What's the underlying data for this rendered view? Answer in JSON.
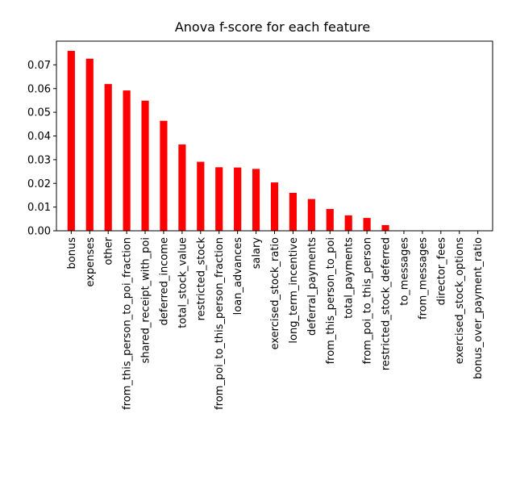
{
  "chart_data": {
    "type": "bar",
    "title": "Anova f-score for each feature",
    "xlabel": "",
    "ylabel": "",
    "categories": [
      "bonus",
      "expenses",
      "other",
      "from_this_person_to_poi_fraction",
      "shared_receipt_with_poi",
      "deferred_income",
      "total_stock_value",
      "restricted_stock",
      "from_poi_to_this_person_fraction",
      "loan_advances",
      "salary",
      "exercised_stock_ratio",
      "long_term_incentive",
      "deferral_payments",
      "from_this_person_to_poi",
      "total_payments",
      "from_poi_to_this_person",
      "restricted_stock_deferred",
      "to_messages",
      "from_messages",
      "director_fees",
      "exercised_stock_options",
      "bonus_over_payment_ratio"
    ],
    "values": [
      0.0759,
      0.0726,
      0.0619,
      0.0592,
      0.0549,
      0.0464,
      0.0364,
      0.0291,
      0.0268,
      0.0267,
      0.0261,
      0.0204,
      0.016,
      0.0134,
      0.0092,
      0.0065,
      0.0054,
      0.0024,
      0,
      0,
      0,
      0,
      0
    ],
    "ylim": [
      0,
      0.08
    ],
    "yticks": [
      "0.00",
      "0.01",
      "0.02",
      "0.03",
      "0.04",
      "0.05",
      "0.06",
      "0.07"
    ],
    "ytick_values": [
      0,
      0.01,
      0.02,
      0.03,
      0.04,
      0.05,
      0.06,
      0.07
    ],
    "grid": false,
    "bar_color": "#ff0000",
    "axis_color": "#000000"
  }
}
